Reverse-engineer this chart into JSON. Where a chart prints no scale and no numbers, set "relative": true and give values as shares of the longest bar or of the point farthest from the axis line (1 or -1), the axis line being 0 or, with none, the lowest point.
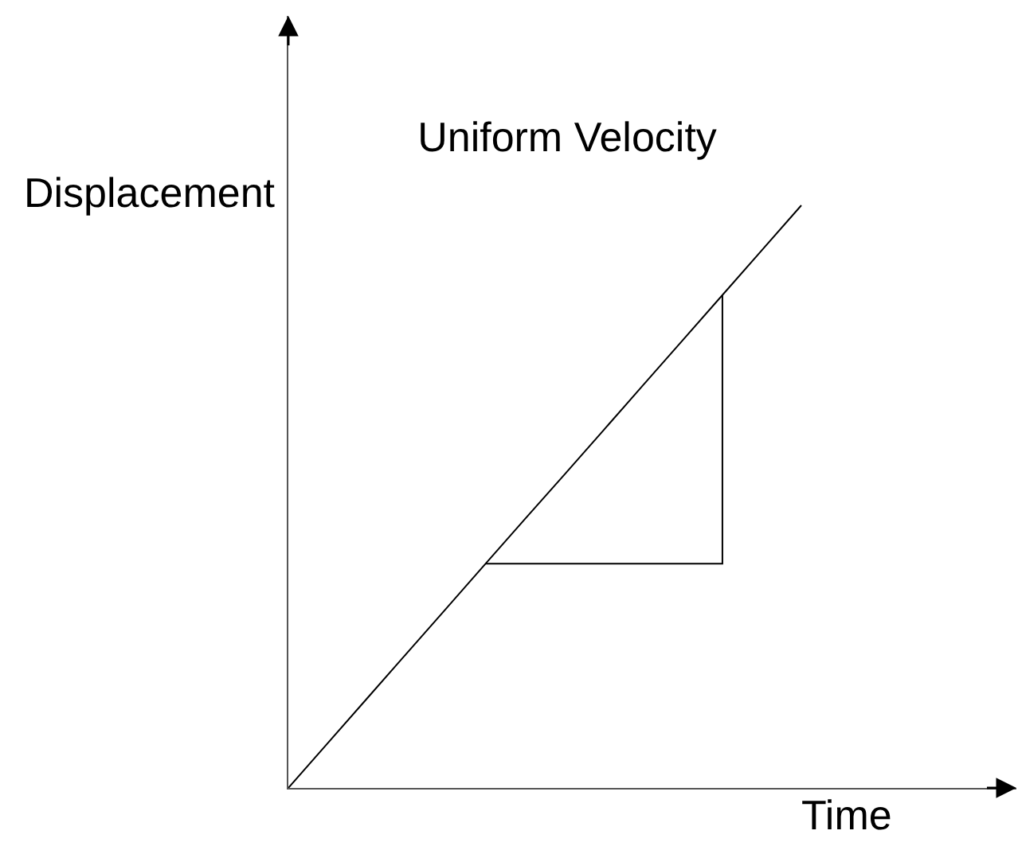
{
  "chart_data": {
    "type": "line",
    "title": "Uniform Velocity",
    "xlabel": "Time",
    "ylabel": "Displacement",
    "relative": true,
    "marker": "none",
    "categories": [
      null,
      null,
      null,
      null,
      null,
      null,
      null,
      null,
      null,
      null,
      null,
      null,
      null,
      null
    ],
    "series": [
      {
        "color": "#000000",
        "values": [
          0,
          0.077,
          0.154,
          0.231,
          0.308,
          0.385,
          0.462,
          0.538,
          0.615,
          0.692,
          0.769,
          0.846,
          0.923,
          1
        ]
      },
      {
        "type": "step",
        "color": "#000000",
        "values": [
          null,
          null,
          null,
          null,
          null,
          0.385,
          0.385,
          0.385,
          0.385,
          0.385,
          0.385,
          0.846,
          null,
          null
        ]
      }
    ]
  }
}
